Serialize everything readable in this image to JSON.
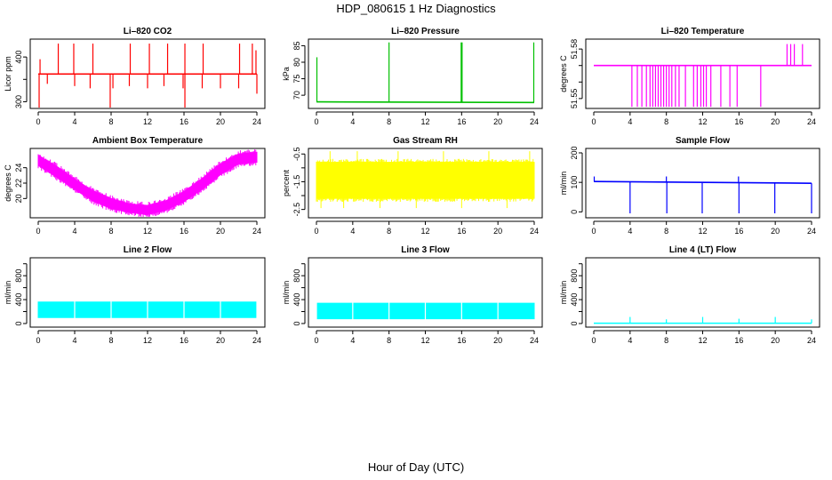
{
  "figure": {
    "title": "HDP_080615  1 Hz Diagnostics",
    "xlabel": "Hour of Day (UTC)"
  },
  "chart_data": [
    {
      "id": "co2",
      "type": "line",
      "title": "Li–820 CO2",
      "ylabel": "Licor ppm",
      "xlim": [
        0,
        24
      ],
      "ylim": [
        285,
        440
      ],
      "xticks": [
        0,
        4,
        8,
        12,
        16,
        20,
        24
      ],
      "yticks": [
        300,
        350,
        400
      ],
      "ytick_labels": [
        "300",
        "",
        "400"
      ],
      "color": "#ff0000",
      "baseline": [
        [
          0,
          362
        ],
        [
          24,
          362
        ]
      ],
      "spikes_up": [
        [
          0.2,
          395
        ],
        [
          2.2,
          430
        ],
        [
          3.9,
          430
        ],
        [
          6.0,
          430
        ],
        [
          10.1,
          430
        ],
        [
          12.2,
          430
        ],
        [
          14.2,
          430
        ],
        [
          16.1,
          430
        ],
        [
          18.1,
          430
        ],
        [
          22.1,
          430
        ],
        [
          23.5,
          430
        ],
        [
          23.9,
          415
        ]
      ],
      "spikes_down": [
        [
          0.1,
          285
        ],
        [
          1.0,
          340
        ],
        [
          4.0,
          335
        ],
        [
          5.7,
          330
        ],
        [
          7.9,
          280
        ],
        [
          8.2,
          330
        ],
        [
          10.0,
          335
        ],
        [
          12.0,
          330
        ],
        [
          13.8,
          335
        ],
        [
          15.9,
          330
        ],
        [
          16.1,
          280
        ],
        [
          18.0,
          330
        ],
        [
          20.0,
          330
        ],
        [
          22.0,
          330
        ],
        [
          24.0,
          318
        ]
      ]
    },
    {
      "id": "pressure",
      "type": "line",
      "title": "Li–820 Pressure",
      "ylabel": "kPa",
      "xlim": [
        0,
        24
      ],
      "ylim": [
        66,
        87
      ],
      "xticks": [
        0,
        4,
        8,
        12,
        16,
        20,
        24
      ],
      "yticks": [
        70,
        75,
        80,
        85
      ],
      "ytick_labels": [
        "70",
        "75",
        "80",
        "85"
      ],
      "color": "#00c000",
      "baseline": [
        [
          0,
          68
        ],
        [
          24,
          67.8
        ]
      ],
      "spikes_up": [
        [
          0.05,
          81.5
        ],
        [
          8.0,
          86
        ],
        [
          15.95,
          86
        ],
        [
          16.05,
          86
        ],
        [
          23.95,
          86
        ]
      ],
      "spikes_down": []
    },
    {
      "id": "licor_temp",
      "type": "line",
      "title": "Li–820 Temperature",
      "ylabel": "degrees C",
      "xlim": [
        0,
        24
      ],
      "ylim": [
        51.544,
        51.586
      ],
      "xticks": [
        0,
        4,
        8,
        12,
        16,
        20,
        24
      ],
      "yticks": [
        51.55,
        51.56,
        51.57,
        51.58
      ],
      "ytick_labels": [
        "51.55",
        "",
        "",
        "51.58"
      ],
      "color": "#ff00ff",
      "baseline": [
        [
          0,
          51.57
        ],
        [
          24,
          51.57
        ]
      ],
      "spikes_up": [
        [
          21.3,
          51.583
        ],
        [
          21.7,
          51.583
        ],
        [
          22.1,
          51.583
        ],
        [
          23.0,
          51.583
        ]
      ],
      "spikes_down": [
        [
          4.2,
          51.545
        ],
        [
          4.8,
          51.545
        ],
        [
          5.3,
          51.545
        ],
        [
          5.8,
          51.545
        ],
        [
          6.2,
          51.545
        ],
        [
          6.5,
          51.545
        ],
        [
          6.8,
          51.545
        ],
        [
          7.1,
          51.545
        ],
        [
          7.4,
          51.545
        ],
        [
          7.7,
          51.545
        ],
        [
          8.0,
          51.545
        ],
        [
          8.3,
          51.545
        ],
        [
          8.6,
          51.545
        ],
        [
          9.0,
          51.545
        ],
        [
          9.4,
          51.545
        ],
        [
          10.1,
          51.545
        ],
        [
          11.0,
          51.545
        ],
        [
          11.4,
          51.545
        ],
        [
          11.8,
          51.545
        ],
        [
          12.1,
          51.545
        ],
        [
          12.4,
          51.545
        ],
        [
          12.9,
          51.545
        ],
        [
          14.0,
          51.545
        ],
        [
          15.0,
          51.545
        ],
        [
          15.8,
          51.545
        ],
        [
          18.4,
          51.545
        ]
      ]
    },
    {
      "id": "box_temp",
      "type": "band",
      "title": "Ambient Box Temperature",
      "ylabel": "degrees C",
      "xlim": [
        0,
        24
      ],
      "ylim": [
        17.5,
        26.5
      ],
      "xticks": [
        0,
        4,
        8,
        12,
        16,
        20,
        24
      ],
      "yticks": [
        20,
        22,
        24
      ],
      "ytick_labels": [
        "20",
        "22",
        "24"
      ],
      "color": "#ff00ff",
      "x": [
        0,
        2,
        4,
        6,
        8,
        10,
        12,
        14,
        16,
        18,
        20,
        22,
        24
      ],
      "y_low": [
        24.3,
        22.8,
        21.2,
        19.7,
        18.7,
        18.2,
        17.9,
        18.5,
        19.6,
        21.2,
        23.1,
        24.5,
        24.7
      ],
      "y_high": [
        25.6,
        24.2,
        22.5,
        21.0,
        20.0,
        19.3,
        19.1,
        19.7,
        20.9,
        22.6,
        24.5,
        25.8,
        26.0
      ]
    },
    {
      "id": "rh",
      "type": "band",
      "title": "Gas Stream RH",
      "ylabel": "percent",
      "xlim": [
        0,
        24
      ],
      "ylim": [
        -2.8,
        -0.3
      ],
      "xticks": [
        0,
        4,
        8,
        12,
        16,
        20,
        24
      ],
      "yticks": [
        -2.5,
        -2.0,
        -1.5,
        -1.0,
        -0.5
      ],
      "ytick_labels": [
        "-2.5",
        "",
        "-1.5",
        "",
        "-0.5"
      ],
      "color": "#ffff00",
      "x": [
        0,
        24
      ],
      "y_low": [
        -2.1,
        -2.1
      ],
      "y_high": [
        -0.8,
        -0.8
      ],
      "spikes_up": [
        [
          1.5,
          -0.4
        ],
        [
          4.5,
          -0.4
        ],
        [
          9,
          -0.4
        ],
        [
          14,
          -0.4
        ],
        [
          19,
          -0.4
        ],
        [
          23.5,
          -0.4
        ]
      ],
      "spikes_down": [
        [
          0.5,
          -2.45
        ],
        [
          3,
          -2.45
        ],
        [
          7,
          -2.45
        ],
        [
          11,
          -2.45
        ],
        [
          16,
          -2.45
        ],
        [
          21,
          -2.45
        ]
      ]
    },
    {
      "id": "sample_flow",
      "type": "line",
      "title": "Sample Flow",
      "ylabel": "ml/min",
      "xlim": [
        0,
        24
      ],
      "ylim": [
        -20,
        215
      ],
      "xticks": [
        0,
        4,
        8,
        12,
        16,
        20,
        24
      ],
      "yticks": [
        0,
        100,
        200
      ],
      "ytick_labels": [
        "0",
        "100",
        "200"
      ],
      "color": "#0000ff",
      "baseline": [
        [
          0,
          103
        ],
        [
          24,
          97
        ]
      ],
      "spikes_up": [
        [
          0.05,
          120
        ],
        [
          8.0,
          120
        ],
        [
          15.95,
          120
        ]
      ],
      "spikes_down": [
        [
          4.0,
          -5
        ],
        [
          8.05,
          -5
        ],
        [
          11.95,
          -5
        ],
        [
          16.0,
          -5
        ],
        [
          19.95,
          -5
        ],
        [
          24.0,
          -5
        ]
      ]
    },
    {
      "id": "line2",
      "type": "band",
      "title": "Line 2 Flow",
      "ylabel": "ml/min",
      "xlim": [
        0,
        24
      ],
      "ylim": [
        -60,
        1100
      ],
      "xticks": [
        0,
        4,
        8,
        12,
        16,
        20,
        24
      ],
      "yticks": [
        0,
        200,
        400,
        600,
        800,
        1000
      ],
      "ytick_labels": [
        "0",
        "",
        "400",
        "",
        "800",
        ""
      ],
      "color": "#00ffff",
      "x": [
        0,
        24
      ],
      "y_low": [
        100,
        100
      ],
      "y_high": [
        360,
        360
      ],
      "gaps": [
        4,
        8,
        12,
        16,
        20,
        24
      ]
    },
    {
      "id": "line3",
      "type": "band",
      "title": "Line 3 Flow",
      "ylabel": "ml/min",
      "xlim": [
        0,
        24
      ],
      "ylim": [
        -60,
        1100
      ],
      "xticks": [
        0,
        4,
        8,
        12,
        16,
        20,
        24
      ],
      "yticks": [
        0,
        200,
        400,
        600,
        800,
        1000
      ],
      "ytick_labels": [
        "0",
        "",
        "400",
        "",
        "800",
        ""
      ],
      "color": "#00ffff",
      "x": [
        0,
        24
      ],
      "y_low": [
        80,
        80
      ],
      "y_high": [
        340,
        340
      ],
      "gaps": [
        0,
        4,
        8,
        12,
        16,
        20
      ]
    },
    {
      "id": "line4",
      "type": "line",
      "title": "Line 4 (LT) Flow",
      "ylabel": "ml/min",
      "xlim": [
        0,
        24
      ],
      "ylim": [
        -60,
        1100
      ],
      "xticks": [
        0,
        4,
        8,
        12,
        16,
        20,
        24
      ],
      "yticks": [
        0,
        200,
        400,
        600,
        800,
        1000
      ],
      "ytick_labels": [
        "0",
        "",
        "400",
        "",
        "800",
        ""
      ],
      "color": "#00ffff",
      "baseline": [
        [
          0,
          5
        ],
        [
          24,
          5
        ]
      ],
      "spikes_up": [
        [
          4.0,
          110
        ],
        [
          8.0,
          70
        ],
        [
          12.0,
          110
        ],
        [
          16.0,
          80
        ],
        [
          20.0,
          110
        ],
        [
          24.0,
          70
        ]
      ],
      "spikes_down": []
    }
  ]
}
